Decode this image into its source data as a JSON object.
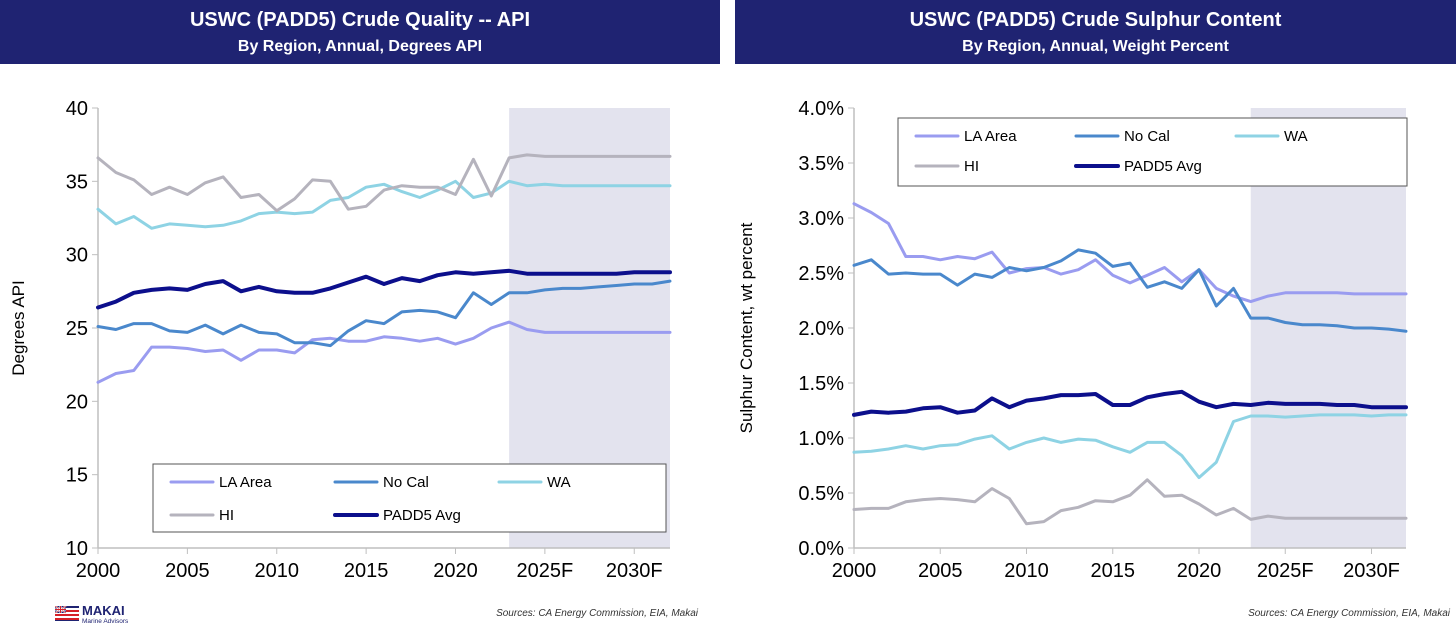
{
  "left_header": {
    "title": "USWC (PADD5) Crude Quality -- API",
    "subtitle": "By Region, Annual, Degrees API"
  },
  "right_header": {
    "title": "USWC (PADD5) Crude Sulphur Content",
    "subtitle": "By Region, Annual, Weight Percent"
  },
  "left_source": "Sources: CA Energy Commission, EIA, Makai",
  "right_source": "Sources: CA Energy Commission, EIA, Makai",
  "logo": {
    "name": "MAKAI",
    "tagline": "Marine Advisors"
  },
  "chart_data": [
    {
      "type": "line",
      "title": "USWC (PADD5) Crude Quality -- API",
      "subtitle": "By Region, Annual, Degrees API",
      "xlabel": "",
      "ylabel": "Degrees API",
      "x": [
        2000,
        2001,
        2002,
        2003,
        2004,
        2005,
        2006,
        2007,
        2008,
        2009,
        2010,
        2011,
        2012,
        2013,
        2014,
        2015,
        2016,
        2017,
        2018,
        2019,
        2020,
        2021,
        2022,
        2023,
        2024,
        2025,
        2026,
        2027,
        2028,
        2029,
        2030,
        2031,
        2032
      ],
      "xlim": [
        2000,
        2032
      ],
      "xticks": [
        2000,
        2005,
        2010,
        2015,
        2020,
        2025,
        2030
      ],
      "xtick_labels": [
        "2000",
        "2005",
        "2010",
        "2015",
        "2020",
        "2025F",
        "2030F"
      ],
      "ylim": [
        10,
        40
      ],
      "yticks": [
        10,
        15,
        20,
        25,
        30,
        35,
        40
      ],
      "ytick_labels": [
        "10",
        "15",
        "20",
        "25",
        "30",
        "35",
        "40"
      ],
      "forecast_start": 2023,
      "grid": false,
      "legend_position": "bottom",
      "series": [
        {
          "name": "LA Area",
          "color": "#9a9cf0",
          "values": [
            21.3,
            21.9,
            22.1,
            23.7,
            23.7,
            23.6,
            23.4,
            23.5,
            22.8,
            23.5,
            23.5,
            23.3,
            24.2,
            24.3,
            24.1,
            24.1,
            24.4,
            24.3,
            24.1,
            24.3,
            23.9,
            24.3,
            25.0,
            25.4,
            24.9,
            24.7,
            24.7,
            24.7,
            24.7,
            24.7,
            24.7,
            24.7,
            24.7
          ]
        },
        {
          "name": "No Cal",
          "color": "#4a88cc",
          "values": [
            25.1,
            24.9,
            25.3,
            25.3,
            24.8,
            24.7,
            25.2,
            24.6,
            25.2,
            24.7,
            24.6,
            24.0,
            24.0,
            23.8,
            24.8,
            25.5,
            25.3,
            26.1,
            26.2,
            26.1,
            25.7,
            27.4,
            26.6,
            27.4,
            27.4,
            27.6,
            27.7,
            27.7,
            27.8,
            27.9,
            28.0,
            28.0,
            28.2
          ]
        },
        {
          "name": "WA",
          "color": "#8ed3e4",
          "values": [
            33.1,
            32.1,
            32.6,
            31.8,
            32.1,
            32.0,
            31.9,
            32.0,
            32.3,
            32.8,
            32.9,
            32.8,
            32.9,
            33.7,
            33.9,
            34.6,
            34.8,
            34.3,
            33.9,
            34.4,
            35.0,
            33.9,
            34.2,
            35.0,
            34.7,
            34.8,
            34.7,
            34.7,
            34.7,
            34.7,
            34.7,
            34.7,
            34.7
          ]
        },
        {
          "name": "HI",
          "color": "#b5b3bd",
          "values": [
            36.6,
            35.6,
            35.1,
            34.1,
            34.6,
            34.1,
            34.9,
            35.3,
            33.9,
            34.1,
            33.0,
            33.8,
            35.1,
            35.0,
            33.1,
            33.3,
            34.4,
            34.7,
            34.6,
            34.6,
            34.1,
            36.5,
            34.0,
            36.6,
            36.8,
            36.7,
            36.7,
            36.7,
            36.7,
            36.7,
            36.7,
            36.7,
            36.7
          ]
        },
        {
          "name": "PADD5 Avg",
          "color": "#0c0f8c",
          "values": [
            26.4,
            26.8,
            27.4,
            27.6,
            27.7,
            27.6,
            28.0,
            28.2,
            27.5,
            27.8,
            27.5,
            27.4,
            27.4,
            27.7,
            28.1,
            28.5,
            28.0,
            28.4,
            28.2,
            28.6,
            28.8,
            28.7,
            28.8,
            28.9,
            28.7,
            28.7,
            28.7,
            28.7,
            28.7,
            28.7,
            28.8,
            28.8,
            28.8
          ]
        }
      ]
    },
    {
      "type": "line",
      "title": "USWC (PADD5) Crude Sulphur Content",
      "subtitle": "By Region, Annual, Weight Percent",
      "xlabel": "",
      "ylabel": "Sulphur Content, wt percent",
      "x": [
        2000,
        2001,
        2002,
        2003,
        2004,
        2005,
        2006,
        2007,
        2008,
        2009,
        2010,
        2011,
        2012,
        2013,
        2014,
        2015,
        2016,
        2017,
        2018,
        2019,
        2020,
        2021,
        2022,
        2023,
        2024,
        2025,
        2026,
        2027,
        2028,
        2029,
        2030,
        2031,
        2032
      ],
      "xlim": [
        2000,
        2032
      ],
      "xticks": [
        2000,
        2005,
        2010,
        2015,
        2020,
        2025,
        2030
      ],
      "xtick_labels": [
        "2000",
        "2005",
        "2010",
        "2015",
        "2020",
        "2025F",
        "2030F"
      ],
      "ylim": [
        0,
        4
      ],
      "yticks": [
        0,
        0.5,
        1,
        1.5,
        2,
        2.5,
        3,
        3.5,
        4
      ],
      "ytick_labels": [
        "0.0%",
        "0.5%",
        "1.0%",
        "1.5%",
        "2.0%",
        "2.5%",
        "3.0%",
        "3.5%",
        "4.0%"
      ],
      "forecast_start": 2023,
      "grid": false,
      "legend_position": "top",
      "series": [
        {
          "name": "LA Area",
          "color": "#9a9cf0",
          "values": [
            3.13,
            3.05,
            2.95,
            2.65,
            2.65,
            2.62,
            2.65,
            2.63,
            2.69,
            2.5,
            2.54,
            2.55,
            2.49,
            2.53,
            2.62,
            2.48,
            2.41,
            2.48,
            2.55,
            2.42,
            2.53,
            2.36,
            2.29,
            2.24,
            2.29,
            2.32,
            2.32,
            2.32,
            2.32,
            2.31,
            2.31,
            2.31,
            2.31
          ]
        },
        {
          "name": "No Cal",
          "color": "#4a88cc",
          "values": [
            2.57,
            2.62,
            2.49,
            2.5,
            2.49,
            2.49,
            2.39,
            2.49,
            2.46,
            2.55,
            2.52,
            2.55,
            2.61,
            2.71,
            2.68,
            2.56,
            2.59,
            2.37,
            2.42,
            2.36,
            2.53,
            2.2,
            2.36,
            2.09,
            2.09,
            2.05,
            2.03,
            2.03,
            2.02,
            2.0,
            2.0,
            1.99,
            1.97
          ]
        },
        {
          "name": "WA",
          "color": "#8ed3e4",
          "values": [
            0.87,
            0.88,
            0.9,
            0.93,
            0.9,
            0.93,
            0.94,
            0.99,
            1.02,
            0.9,
            0.96,
            1.0,
            0.96,
            0.99,
            0.98,
            0.92,
            0.87,
            0.96,
            0.96,
            0.84,
            0.64,
            0.78,
            1.15,
            1.2,
            1.2,
            1.19,
            1.2,
            1.21,
            1.21,
            1.21,
            1.2,
            1.21,
            1.21
          ]
        },
        {
          "name": "HI",
          "color": "#b5b3bd",
          "values": [
            0.35,
            0.36,
            0.36,
            0.42,
            0.44,
            0.45,
            0.44,
            0.42,
            0.54,
            0.45,
            0.22,
            0.24,
            0.34,
            0.37,
            0.43,
            0.42,
            0.48,
            0.62,
            0.47,
            0.48,
            0.4,
            0.3,
            0.36,
            0.26,
            0.29,
            0.27,
            0.27,
            0.27,
            0.27,
            0.27,
            0.27,
            0.27,
            0.27
          ]
        },
        {
          "name": "PADD5 Avg",
          "color": "#0c0f8c",
          "values": [
            1.21,
            1.24,
            1.23,
            1.24,
            1.27,
            1.28,
            1.23,
            1.25,
            1.36,
            1.28,
            1.34,
            1.36,
            1.39,
            1.39,
            1.4,
            1.3,
            1.3,
            1.37,
            1.4,
            1.42,
            1.33,
            1.28,
            1.31,
            1.3,
            1.32,
            1.31,
            1.31,
            1.31,
            1.3,
            1.3,
            1.28,
            1.28,
            1.28
          ]
        }
      ]
    }
  ]
}
